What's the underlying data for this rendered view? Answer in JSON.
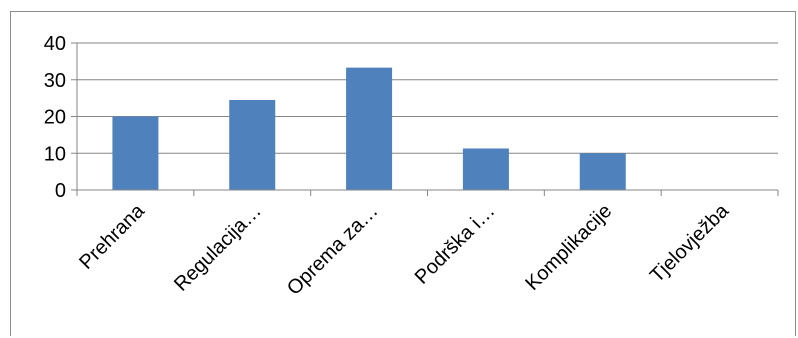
{
  "chart_data": {
    "type": "bar",
    "title": "",
    "xlabel": "",
    "ylabel": "",
    "categories": [
      "Prehrana",
      "Regulacija…",
      "Oprema za…",
      "Podrška i…",
      "Komplikacije",
      "Tjelovježba"
    ],
    "values": [
      20,
      24.5,
      33.3,
      11.3,
      10,
      0
    ],
    "ylim": [
      0,
      40
    ],
    "yticks": [
      "0",
      "10",
      "20",
      "30",
      "40"
    ],
    "grid": true,
    "legend": "none",
    "bar_color": "#4f81bd",
    "gridline_color": "#868686"
  }
}
